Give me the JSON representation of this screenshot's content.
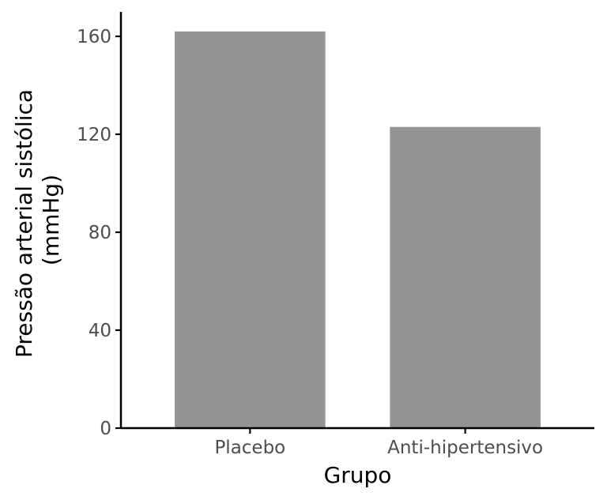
{
  "chart_data": {
    "type": "bar",
    "title": "",
    "xlabel": "Grupo",
    "ylabel_lines": [
      "Pressão arterial sistólica",
      "(mmHg)"
    ],
    "categories": [
      "Placebo",
      "Anti-hipertensivo"
    ],
    "values": [
      162,
      123
    ],
    "ylim": [
      0,
      170
    ],
    "yticks": [
      0,
      40,
      80,
      120,
      160
    ],
    "bar_color": "#949494",
    "axis_color": "#000000",
    "grid": false,
    "legend": "none"
  }
}
